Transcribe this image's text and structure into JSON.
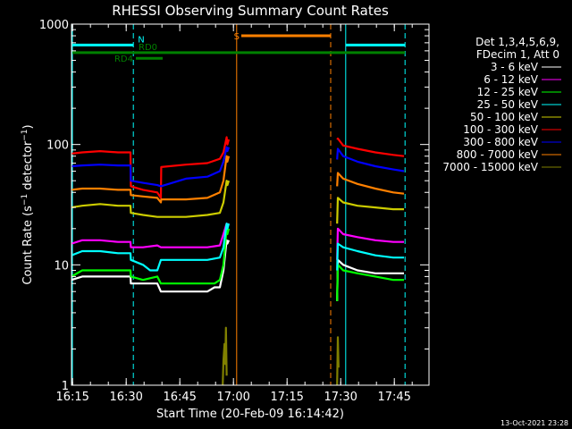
{
  "title": "RHESSI Observing Summary Count Rates",
  "footer_date": "13-Oct-2021 23:28",
  "colors": {
    "background": "#000000",
    "axes": "#ffffff",
    "cyan": "#00ffff",
    "orange": "#ff8000",
    "green": "#008000"
  },
  "legend": {
    "header": [
      "Det 1,3,4,5,6,9,",
      "FDecim 1, Att 0"
    ]
  },
  "annotations": {
    "N": "N",
    "S": "S",
    "RD0": "RD0",
    "RD4": "RD4"
  },
  "chart_data": {
    "type": "line",
    "title": "RHESSI Observing Summary Count Rates",
    "xlabel": "Start Time (20-Feb-09 16:14:42)",
    "ylabel": "Count Rate (s^-1 detector^-1)",
    "x_unit": "minutes after 16:14:42",
    "xlim": [
      0,
      100
    ],
    "ylim": [
      1,
      1000
    ],
    "y_scale": "log",
    "x_ticks": [
      {
        "label": "16:15",
        "value": 0.3
      },
      {
        "label": "16:30",
        "value": 15.3
      },
      {
        "label": "16:45",
        "value": 30.3
      },
      {
        "label": "17:00",
        "value": 45.3
      },
      {
        "label": "17:15",
        "value": 60.3
      },
      {
        "label": "17:30",
        "value": 75.3
      },
      {
        "label": "17:45",
        "value": 90.3
      }
    ],
    "y_ticks": [
      {
        "label": "1",
        "value": 1
      },
      {
        "label": "10",
        "value": 10
      },
      {
        "label": "100",
        "value": 100
      },
      {
        "label": "1000",
        "value": 1000
      }
    ],
    "series": [
      {
        "name": "3 - 6 keV",
        "color": "#ffffff",
        "points": [
          [
            0,
            7.5
          ],
          [
            3,
            8
          ],
          [
            8,
            8
          ],
          [
            13,
            8
          ],
          [
            16.5,
            8
          ],
          [
            16.6,
            7
          ],
          [
            20,
            7
          ],
          [
            24,
            7
          ],
          [
            25,
            6
          ],
          [
            32,
            6
          ],
          [
            38,
            6
          ],
          [
            40,
            6.5
          ],
          [
            41.5,
            6.5
          ],
          [
            42.5,
            9
          ],
          [
            43.4,
            16
          ],
          [
            43.6,
            15
          ],
          [
            44,
            16
          ],
          null,
          [
            74.3,
            5
          ],
          [
            74.5,
            11
          ],
          [
            76,
            10
          ],
          [
            80,
            9
          ],
          [
            85,
            8.5
          ],
          [
            90,
            8.5
          ],
          [
            93,
            8.5
          ]
        ]
      },
      {
        "name": "6 - 12 keV",
        "color": "#ff00ff",
        "points": [
          [
            0,
            15
          ],
          [
            3,
            16
          ],
          [
            8,
            16
          ],
          [
            13,
            15.5
          ],
          [
            16.5,
            15.5
          ],
          [
            16.6,
            14
          ],
          [
            20,
            14
          ],
          [
            24,
            14.5
          ],
          [
            25,
            14
          ],
          [
            32,
            14
          ],
          [
            38,
            14
          ],
          [
            41.5,
            14.5
          ],
          [
            42.5,
            18
          ],
          [
            43.4,
            22
          ],
          [
            43.6,
            21
          ],
          [
            44,
            22
          ],
          null,
          [
            74.3,
            11
          ],
          [
            74.5,
            20
          ],
          [
            76,
            18
          ],
          [
            80,
            17
          ],
          [
            85,
            16
          ],
          [
            90,
            15.5
          ],
          [
            93,
            15.5
          ]
        ]
      },
      {
        "name": "12 - 25 keV",
        "color": "#00ff00",
        "points": [
          [
            0,
            8
          ],
          [
            3,
            9
          ],
          [
            8,
            9
          ],
          [
            13,
            9
          ],
          [
            16.5,
            9
          ],
          [
            16.6,
            8
          ],
          [
            20,
            7.5
          ],
          [
            24,
            8
          ],
          [
            25,
            7
          ],
          [
            32,
            7
          ],
          [
            38,
            7
          ],
          [
            40,
            7
          ],
          [
            41.5,
            7.5
          ],
          [
            42.5,
            10
          ],
          [
            43.4,
            20
          ],
          [
            43.6,
            18
          ],
          [
            44,
            20
          ],
          null,
          [
            74.3,
            5
          ],
          [
            74.5,
            10
          ],
          [
            76,
            9
          ],
          [
            80,
            8.5
          ],
          [
            85,
            8
          ],
          [
            90,
            7.5
          ],
          [
            93,
            7.5
          ]
        ]
      },
      {
        "name": "25 - 50 keV",
        "color": "#00ffff",
        "points": [
          [
            0,
            12
          ],
          [
            3,
            13
          ],
          [
            8,
            13
          ],
          [
            13,
            12.5
          ],
          [
            16.5,
            12.5
          ],
          [
            16.6,
            11
          ],
          [
            20,
            10
          ],
          [
            22,
            9
          ],
          [
            24,
            9
          ],
          [
            25,
            11
          ],
          [
            32,
            11
          ],
          [
            38,
            11
          ],
          [
            41.5,
            11.5
          ],
          [
            42.5,
            14
          ],
          [
            43.4,
            22
          ],
          [
            43.6,
            20
          ],
          [
            44,
            22
          ],
          null,
          [
            74.3,
            9
          ],
          [
            74.5,
            15
          ],
          [
            76,
            14
          ],
          [
            80,
            13
          ],
          [
            85,
            12
          ],
          [
            90,
            11.5
          ],
          [
            93,
            11.5
          ]
        ]
      },
      {
        "name": "50 - 100 keV",
        "color": "#cccc00",
        "points": [
          [
            0,
            30
          ],
          [
            3,
            31
          ],
          [
            8,
            32
          ],
          [
            13,
            31
          ],
          [
            16.5,
            31
          ],
          [
            16.6,
            27
          ],
          [
            20,
            26
          ],
          [
            24,
            25
          ],
          [
            25,
            25
          ],
          [
            32,
            25
          ],
          [
            38,
            26
          ],
          [
            41.5,
            27
          ],
          [
            42.5,
            33
          ],
          [
            43.4,
            50
          ],
          [
            43.6,
            46
          ],
          [
            44,
            50
          ],
          null,
          [
            74.3,
            22
          ],
          [
            74.5,
            36
          ],
          [
            76,
            33
          ],
          [
            80,
            31
          ],
          [
            85,
            30
          ],
          [
            90,
            29
          ],
          [
            93,
            29
          ]
        ]
      },
      {
        "name": "100 - 300 keV",
        "color": "#ff0000",
        "points": [
          [
            0,
            84
          ],
          [
            3,
            86
          ],
          [
            8,
            88
          ],
          [
            13,
            86
          ],
          [
            16.5,
            86
          ],
          [
            16.6,
            45
          ],
          [
            20,
            42
          ],
          [
            24,
            40
          ],
          [
            25,
            36
          ],
          [
            25.1,
            65
          ],
          [
            32,
            68
          ],
          [
            38,
            70
          ],
          [
            41.5,
            76
          ],
          [
            42.5,
            86
          ],
          [
            43.4,
            115
          ],
          [
            43.6,
            100
          ],
          [
            44,
            110
          ],
          null,
          [
            74.3,
            110
          ],
          [
            74.5,
            112
          ],
          [
            76,
            98
          ],
          [
            80,
            92
          ],
          [
            85,
            86
          ],
          [
            90,
            82
          ],
          [
            93,
            80
          ]
        ]
      },
      {
        "name": "300 - 800 keV",
        "color": "#0000ff",
        "points": [
          [
            0,
            66
          ],
          [
            3,
            67
          ],
          [
            8,
            68
          ],
          [
            13,
            67
          ],
          [
            16.5,
            67
          ],
          [
            16.6,
            50
          ],
          [
            20,
            48
          ],
          [
            24,
            46
          ],
          [
            25,
            45
          ],
          [
            32,
            52
          ],
          [
            38,
            54
          ],
          [
            41.5,
            60
          ],
          [
            42.5,
            72
          ],
          [
            43.4,
            95
          ],
          [
            43.6,
            88
          ],
          [
            44,
            95
          ],
          null,
          [
            74.3,
            75
          ],
          [
            74.5,
            92
          ],
          [
            76,
            80
          ],
          [
            80,
            72
          ],
          [
            85,
            66
          ],
          [
            90,
            62
          ],
          [
            93,
            60
          ]
        ]
      },
      {
        "name": "800 - 7000 keV",
        "color": "#ff8000",
        "points": [
          [
            0,
            42
          ],
          [
            3,
            43
          ],
          [
            8,
            43
          ],
          [
            13,
            42
          ],
          [
            16.5,
            42
          ],
          [
            16.6,
            38
          ],
          [
            20,
            37
          ],
          [
            24,
            36
          ],
          [
            25,
            33
          ],
          [
            25.1,
            35
          ],
          [
            32,
            35
          ],
          [
            38,
            36
          ],
          [
            41.5,
            40
          ],
          [
            42.5,
            50
          ],
          [
            43.4,
            80
          ],
          [
            43.6,
            72
          ],
          [
            44,
            80
          ],
          null,
          [
            74.3,
            45
          ],
          [
            74.5,
            58
          ],
          [
            76,
            52
          ],
          [
            80,
            47
          ],
          [
            85,
            43
          ],
          [
            90,
            40
          ],
          [
            93,
            39
          ]
        ]
      },
      {
        "name": "7000 - 15000 keV",
        "color": "#808000",
        "points": [
          [
            42.3,
            1
          ],
          [
            42.5,
            1.6
          ],
          [
            42.8,
            2.2
          ],
          [
            43,
            1.5
          ],
          [
            43.2,
            3
          ],
          [
            43.4,
            1.2
          ],
          null,
          [
            74.3,
            1
          ],
          [
            74.5,
            2.5
          ],
          [
            74.7,
            1.4
          ]
        ]
      }
    ],
    "attenuator_flags": [
      {
        "label": "N",
        "color": "#00ffff",
        "start": 0,
        "end": 17.3,
        "value": 670
      },
      {
        "label": "N",
        "color": "#00ffff",
        "start": 76.7,
        "end": 93.3,
        "value": 670
      },
      {
        "label": "S",
        "color": "#ff8000",
        "start": 47.5,
        "end": 72.5,
        "value": 800
      },
      {
        "label": "RD0",
        "color": "#008000",
        "start": 0,
        "end": 93.3,
        "value": 580
      },
      {
        "label": "RD4",
        "color": "#008000",
        "start": 18,
        "end": 25.5,
        "value": 520
      }
    ],
    "vertical_markers": [
      {
        "x": 0,
        "color": "#00ffff",
        "style": "solid"
      },
      {
        "x": 17.3,
        "color": "#00ffff",
        "style": "dashed"
      },
      {
        "x": 46.2,
        "color": "#ff8000",
        "style": "solid"
      },
      {
        "x": 72.5,
        "color": "#ff8000",
        "style": "dashed"
      },
      {
        "x": 76.7,
        "color": "#00ffff",
        "style": "solid"
      },
      {
        "x": 93.3,
        "color": "#00ffff",
        "style": "dashed"
      }
    ]
  }
}
